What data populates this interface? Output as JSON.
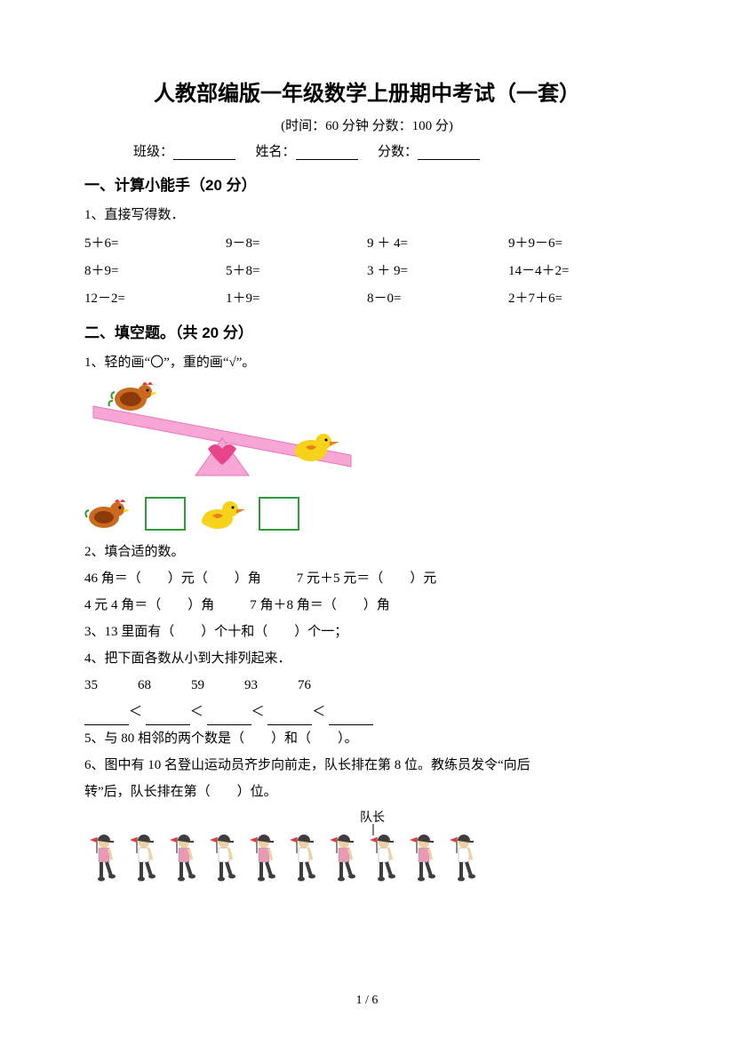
{
  "title": "人教部编版一年级数学上册期中考试（一套）",
  "meta_line": "(时间：60 分钟   分数：100 分)",
  "info": {
    "class_label": "班级：",
    "name_label": "姓名：",
    "score_label": "分数："
  },
  "s1": {
    "head": "一、计算小能手（20 分）",
    "q1_label": "1、直接写得数．",
    "rows": [
      [
        "5＋6=",
        "9－8=",
        "9 ＋ 4=",
        "9＋9－6="
      ],
      [
        "8＋9=",
        "5＋8=",
        "3 ＋ 9=",
        "14－4＋2="
      ],
      [
        "12－2=",
        "1＋9=",
        "8－0=",
        "2＋7＋6="
      ]
    ]
  },
  "s2": {
    "head": "二、填空题。（共 20 分）",
    "q1": "1、轻的画“〇”，重的画“√”。",
    "q2_label": "2、填合适的数。",
    "q2a_left": "46 角＝（　　）元（　　）角",
    "q2a_right": "7 元＋5 元＝（　　）元",
    "q2b_left": "4 元 4 角＝（　　）角",
    "q2b_right": "7 角＋8 角＝（　　）角",
    "q3": "3、13 里面有（　　）个十和（　　）个一；",
    "q4": "4、把下面各数从小到大排列起来．",
    "q4_nums": "35　　　68　　　59　　　93　　　76",
    "q4_cmp_a": "＜",
    "q5": "5、与 80 相邻的两个数是（　　）和（　　）。",
    "q6a": "6、图中有 10 名登山运动员齐步向前走，队长排在第 8 位。教练员发令“向后",
    "q6b": "转”后，队长排在第（　　）位。",
    "captain_label": "队长"
  },
  "page_num": "1 / 6",
  "colors": {
    "seesaw_pink": "#f7a6d5",
    "seesaw_pink_dark": "#e874b8",
    "chicken_brown": "#c96a1e",
    "chicken_dark": "#8c3a0a",
    "duck_yellow": "#f7d21a",
    "duck_orange": "#e8801a",
    "green_leaf": "#2e9b3a",
    "heart": "#e8448a",
    "hiker_pink": "#e89ab5",
    "hiker_black": "#3e3e3e",
    "hiker_skin": "#f2cfa0",
    "hiker_flag": "#e83a3a"
  }
}
